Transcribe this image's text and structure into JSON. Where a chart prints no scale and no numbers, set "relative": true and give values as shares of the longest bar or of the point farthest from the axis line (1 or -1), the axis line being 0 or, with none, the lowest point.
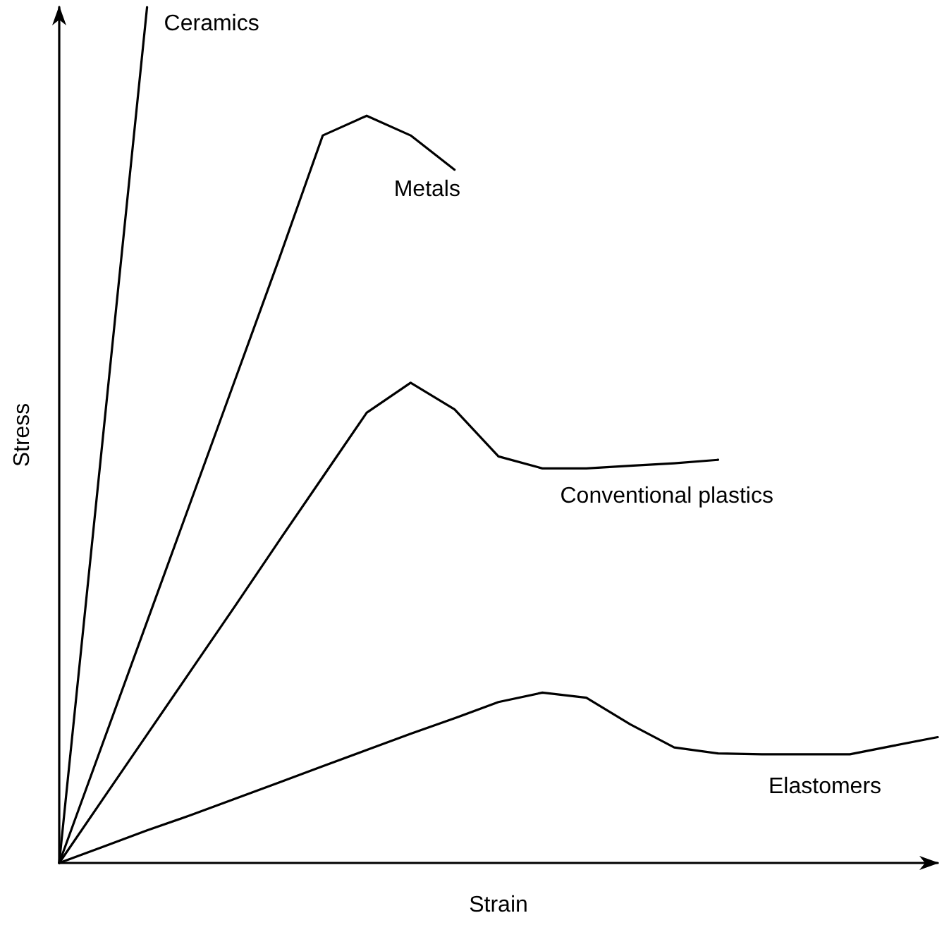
{
  "chart_data": {
    "type": "line",
    "xlabel": "Strain",
    "ylabel": "Stress",
    "relative": true,
    "grid": false,
    "legend": false,
    "marker": "none",
    "line_style": "solid",
    "categories": [
      null,
      null,
      null,
      null,
      null,
      null,
      null,
      null,
      null,
      null,
      null,
      null,
      null,
      null,
      null,
      null,
      null,
      null,
      null,
      null,
      null
    ],
    "series": [
      {
        "name": "Ceramics",
        "color": "#000000",
        "values": [
          0,
          0.5,
          1,
          null,
          null,
          null,
          null,
          null,
          null,
          null,
          null,
          null,
          null,
          null,
          null,
          null,
          null,
          null,
          null,
          null,
          null
        ]
      },
      {
        "name": "Metals",
        "color": "#000000",
        "values": [
          0,
          0.141,
          0.282,
          0.423,
          0.564,
          0.705,
          0.85,
          0.873,
          0.85,
          0.81,
          null,
          null,
          null,
          null,
          null,
          null,
          null,
          null,
          null,
          null,
          null
        ]
      },
      {
        "name": "Conventional plastics",
        "color": "#000000",
        "values": [
          0,
          0.075,
          0.15,
          0.225,
          0.3,
          0.376,
          0.451,
          0.526,
          0.561,
          0.53,
          0.475,
          0.461,
          0.461,
          0.464,
          0.467,
          0.471,
          null,
          null,
          null,
          null,
          null
        ]
      },
      {
        "name": "Elastomers",
        "color": "#000000",
        "values": [
          0,
          0.019,
          0.038,
          0.056,
          0.075,
          0.094,
          0.113,
          0.132,
          0.151,
          0.169,
          0.188,
          0.199,
          0.193,
          0.162,
          0.135,
          0.128,
          0.127,
          0.127,
          0.127,
          0.137,
          0.147
        ]
      }
    ]
  }
}
